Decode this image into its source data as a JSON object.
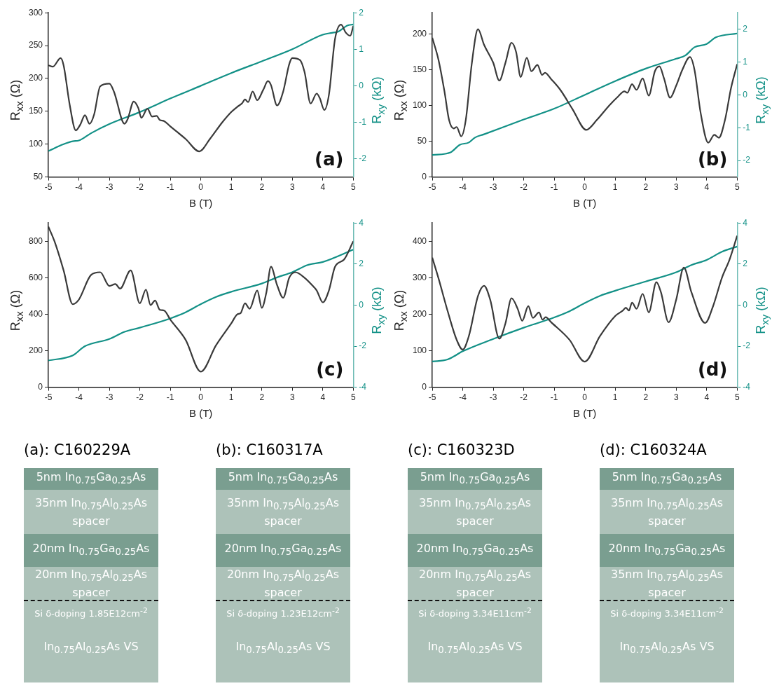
{
  "chart_data": [
    {
      "type": "line",
      "xlabel": "B (T)",
      "ylabel": "R$_{xx}$ (Ω)",
      "y2label": "R$_{xy}$ (kΩ)",
      "xlim": [
        -5,
        5
      ],
      "xticks": [
        -5,
        -4,
        -3,
        -2,
        -1,
        0,
        1,
        2,
        3,
        4,
        5
      ],
      "ylim": [
        50,
        300
      ],
      "yticks": [
        50,
        100,
        150,
        200,
        250,
        300
      ],
      "y2lim": [
        -2.5,
        2
      ],
      "y2ticks": [
        -2,
        -1,
        0,
        1,
        2
      ],
      "annotations": [
        "(a)"
      ],
      "series": [
        {
          "color": "#3a3a3a",
          "x": [
            -5,
            -4.85,
            -4.6,
            -4.5,
            -4.3,
            -4.1,
            -3.95,
            -3.8,
            -3.65,
            -3.5,
            -3.3,
            -3,
            -2.85,
            -2.5,
            -2.4,
            -2.2,
            -2.05,
            -1.95,
            -1.75,
            -1.6,
            -1.45,
            -1.35,
            -1.2,
            -1,
            -0.5,
            -0.05,
            0.3,
            0.7,
            1,
            1.2,
            1.35,
            1.45,
            1.55,
            1.7,
            1.85,
            2.05,
            2.2,
            2.3,
            2.5,
            2.7,
            2.9,
            3,
            3.25,
            3.4,
            3.6,
            3.8,
            3.9,
            4.05,
            4.2,
            4.4,
            4.6,
            4.75,
            4.9,
            5
          ],
          "values": [
            220,
            218,
            231,
            220,
            160,
            121,
            130,
            144,
            131,
            145,
            188,
            192,
            180,
            131,
            138,
            165,
            155,
            140,
            154,
            142,
            143,
            137,
            135,
            127,
            108,
            89,
            108,
            133,
            149,
            157,
            162,
            168,
            164,
            180,
            167,
            183,
            196,
            190,
            159,
            180,
            222,
            231,
            228,
            210,
            162,
            177,
            170,
            152,
            175,
            260,
            282,
            270,
            265,
            280
          ]
        },
        {
          "color": "#139187",
          "axis": "y2",
          "x": [
            -5,
            -4.5,
            -4.2,
            -4,
            -3.6,
            -3,
            -2,
            -1,
            0,
            1,
            2,
            3,
            4,
            4.3,
            4.5,
            4.8,
            5
          ],
          "values": [
            -1.79,
            -1.6,
            -1.52,
            -1.5,
            -1.3,
            -1.05,
            -0.72,
            -0.35,
            0,
            0.35,
            0.67,
            1,
            1.4,
            1.45,
            1.48,
            1.65,
            1.68
          ]
        }
      ]
    },
    {
      "type": "line",
      "xlabel": "B (T)",
      "ylabel": "R$_{xx}$ (Ω)",
      "y2label": "R$_{xy}$ (kΩ)",
      "xlim": [
        -5,
        5
      ],
      "xticks": [
        -5,
        -4,
        -3,
        -2,
        -1,
        0,
        1,
        2,
        3,
        4,
        5
      ],
      "ylim": [
        0,
        230
      ],
      "yticks": [
        0,
        50,
        100,
        150,
        200
      ],
      "y2lim": [
        -2.5,
        2.5
      ],
      "y2ticks": [
        -2,
        -1,
        0,
        1,
        2
      ],
      "annotations": [
        "(b)"
      ],
      "series": [
        {
          "color": "#3a3a3a",
          "x": [
            -5,
            -4.8,
            -4.6,
            -4.45,
            -4.3,
            -4.2,
            -4.05,
            -3.9,
            -3.7,
            -3.5,
            -3.3,
            -3,
            -2.8,
            -2.6,
            -2.4,
            -2.25,
            -2.1,
            -1.9,
            -1.75,
            -1.55,
            -1.4,
            -1.3,
            -1.1,
            -0.8,
            -0.4,
            0.05,
            0.4,
            0.8,
            1.1,
            1.3,
            1.4,
            1.55,
            1.7,
            1.9,
            2.1,
            2.3,
            2.45,
            2.6,
            2.8,
            3,
            3.2,
            3.45,
            3.6,
            3.8,
            4.05,
            4.25,
            4.4,
            4.6,
            4.8,
            5
          ],
          "values": [
            195,
            165,
            120,
            80,
            68,
            70,
            57,
            80,
            160,
            207,
            185,
            160,
            135,
            160,
            188,
            175,
            140,
            167,
            148,
            157,
            143,
            146,
            137,
            122,
            95,
            66,
            80,
            100,
            113,
            120,
            118,
            130,
            122,
            138,
            114,
            148,
            155,
            138,
            111,
            128,
            150,
            168,
            150,
            90,
            48,
            59,
            55,
            80,
            125,
            158
          ]
        },
        {
          "color": "#139187",
          "axis": "y2",
          "x": [
            -5,
            -4.4,
            -4.1,
            -3.8,
            -3.6,
            -3.3,
            -2,
            -1,
            0,
            1,
            2,
            3,
            3.3,
            3.6,
            4,
            4.3,
            5
          ],
          "values": [
            -1.83,
            -1.75,
            -1.52,
            -1.45,
            -1.3,
            -1.2,
            -0.75,
            -0.42,
            0,
            0.42,
            0.8,
            1.1,
            1.2,
            1.45,
            1.55,
            1.75,
            1.87
          ]
        }
      ]
    },
    {
      "type": "line",
      "xlabel": "B (T)",
      "ylabel": "R$_{xx}$ (Ω)",
      "y2label": "R$_{xy}$ (kΩ)",
      "xlim": [
        -5,
        5
      ],
      "xticks": [
        -5,
        -4,
        -3,
        -2,
        -1,
        0,
        1,
        2,
        3,
        4,
        5
      ],
      "ylim": [
        0,
        900
      ],
      "yticks": [
        0,
        200,
        400,
        600,
        800
      ],
      "y2lim": [
        -4,
        4
      ],
      "y2ticks": [
        -4,
        -2,
        0,
        2,
        4
      ],
      "annotations": [
        "(c)"
      ],
      "series": [
        {
          "color": "#3a3a3a",
          "x": [
            -5,
            -4.8,
            -4.5,
            -4.2,
            -4,
            -3.6,
            -3.3,
            -3,
            -2.8,
            -2.65,
            -2.3,
            -2,
            -1.8,
            -1.65,
            -1.5,
            -1.35,
            -1.2,
            -1,
            -0.5,
            0,
            0.5,
            1,
            1.2,
            1.3,
            1.45,
            1.6,
            1.85,
            2,
            2.15,
            2.3,
            2.5,
            2.7,
            2.9,
            3.1,
            3.4,
            3.7,
            3.8,
            4,
            4.2,
            4.4,
            4.7,
            5
          ],
          "values": [
            880,
            800,
            640,
            455,
            480,
            615,
            630,
            555,
            565,
            540,
            640,
            460,
            535,
            450,
            475,
            425,
            420,
            370,
            260,
            85,
            230,
            350,
            400,
            405,
            460,
            430,
            530,
            435,
            520,
            660,
            560,
            490,
            600,
            630,
            600,
            550,
            530,
            465,
            530,
            660,
            700,
            800
          ]
        },
        {
          "color": "#139187",
          "axis": "y2",
          "x": [
            -5,
            -4.2,
            -3.8,
            -3,
            -2.5,
            -2,
            -1,
            -0.5,
            0,
            0.5,
            1,
            2,
            2.5,
            3,
            3.5,
            4,
            5
          ],
          "values": [
            -2.7,
            -2.45,
            -2,
            -1.65,
            -1.3,
            -1.1,
            -0.65,
            -0.35,
            0.05,
            0.4,
            0.65,
            1.05,
            1.35,
            1.6,
            1.95,
            2.1,
            2.7
          ]
        }
      ]
    },
    {
      "type": "line",
      "xlabel": "B (T)",
      "ylabel": "R$_{xx}$ (Ω)",
      "y2label": "R$_{xy}$ (kΩ)",
      "xlim": [
        -5,
        5
      ],
      "xticks": [
        -5,
        -4,
        -3,
        -2,
        -1,
        0,
        1,
        2,
        3,
        4,
        5
      ],
      "ylim": [
        0,
        450
      ],
      "yticks": [
        0,
        100,
        200,
        300,
        400
      ],
      "y2lim": [
        -4,
        4
      ],
      "y2ticks": [
        -4,
        -2,
        0,
        2,
        4
      ],
      "annotations": [
        "(d)"
      ],
      "series": [
        {
          "color": "#3a3a3a",
          "x": [
            -5,
            -4.8,
            -4.5,
            -4.2,
            -4,
            -3.8,
            -3.5,
            -3.3,
            -3.1,
            -2.8,
            -2.6,
            -2.4,
            -2.2,
            -2.05,
            -1.85,
            -1.7,
            -1.5,
            -1.38,
            -1.28,
            -1.1,
            -0.5,
            0,
            0.5,
            1,
            1.25,
            1.35,
            1.45,
            1.55,
            1.7,
            1.9,
            2.1,
            2.35,
            2.5,
            2.75,
            3,
            3.25,
            3.5,
            3.95,
            4.2,
            4.5,
            4.75,
            5
          ],
          "values": [
            355,
            300,
            210,
            130,
            103,
            140,
            250,
            278,
            240,
            133,
            175,
            244,
            215,
            182,
            222,
            190,
            205,
            185,
            192,
            178,
            130,
            70,
            140,
            195,
            210,
            218,
            210,
            232,
            215,
            256,
            205,
            288,
            260,
            178,
            240,
            328,
            260,
            176,
            220,
            300,
            350,
            415
          ]
        },
        {
          "color": "#139187",
          "axis": "y2",
          "x": [
            -5,
            -4.5,
            -4,
            -3,
            -2,
            -1,
            -0.5,
            0,
            0.5,
            1,
            2,
            3,
            3.5,
            4,
            4.5,
            5
          ],
          "values": [
            -2.75,
            -2.65,
            -2.25,
            -1.65,
            -1.1,
            -0.6,
            -0.3,
            0.1,
            0.45,
            0.7,
            1.15,
            1.6,
            1.95,
            2.2,
            2.6,
            2.85
          ]
        }
      ]
    },
    {
      "type": "other",
      "title": "(a): C160229A",
      "annotations": [
        "5nm  In$_{0.75}$Ga$_{0.25}$As",
        "35nm  In$_{0.75}$Al$_{0.25}$As\nspacer",
        "20nm  In$_{0.75}$Ga$_{0.25}$As",
        "20nm  In$_{0.75}$Al$_{0.25}$As\nspacer",
        "Si δ-doping 1.85E12cm$^{-2}$",
        "In$_{0.75}$Al$_{0.25}$As  VS"
      ]
    },
    {
      "type": "other",
      "title": "(b): C160317A",
      "annotations": [
        "5nm  In$_{0.75}$Ga$_{0.25}$As",
        "35nm  In$_{0.75}$Al$_{0.25}$As\nspacer",
        "20nm  In$_{0.75}$Ga$_{0.25}$As",
        "20nm  In$_{0.75}$Al$_{0.25}$As\nspacer",
        "Si δ-doping 1.23E12cm$^{-2}$",
        "In$_{0.75}$Al$_{0.25}$As  VS"
      ]
    },
    {
      "type": "other",
      "title": "(c): C160323D",
      "annotations": [
        "5nm  In$_{0.75}$Ga$_{0.25}$As",
        "35nm  In$_{0.75}$Al$_{0.25}$As\nspacer",
        "20nm  In$_{0.75}$Ga$_{0.25}$As",
        "20nm  In$_{0.75}$Al$_{0.25}$As\nspacer",
        "Si δ-doping 3.34E11cm$^{-2}$",
        "In$_{0.75}$Al$_{0.25}$As  VS"
      ]
    },
    {
      "type": "other",
      "title": "(d): C160324A",
      "annotations": [
        "5nm  In$_{0.75}$Ga$_{0.25}$As",
        "35nm  In$_{0.75}$Al$_{0.25}$As\nspacer",
        "20nm  In$_{0.75}$Ga$_{0.25}$As",
        "35nm  In$_{0.75}$Al$_{0.25}$As\nspacer",
        "Si δ-doping 3.34E11cm$^{-2}$",
        "In$_{0.75}$Al$_{0.25}$As  VS"
      ]
    }
  ]
}
